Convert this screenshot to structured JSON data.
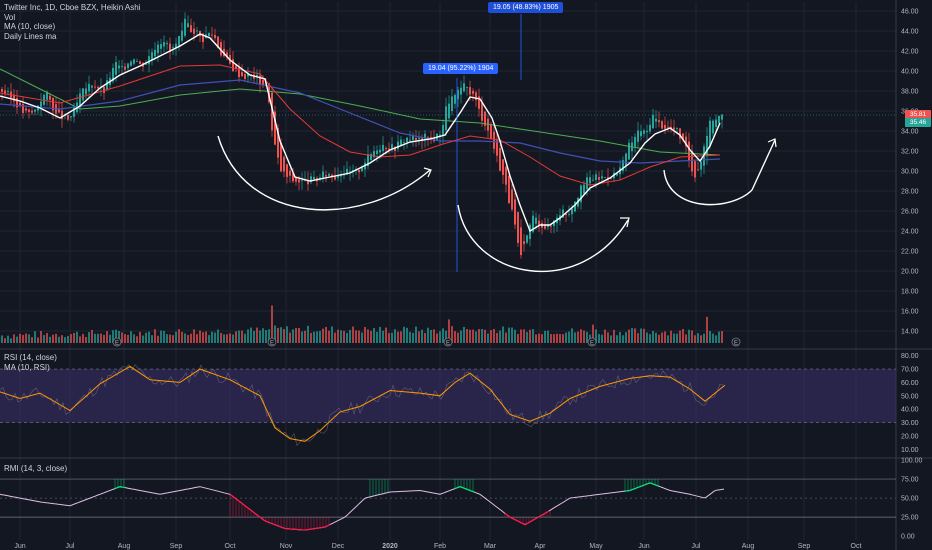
{
  "legend": {
    "symbol": "Twitter Inc, 1D, Cboe BZX, Heikin Ashi",
    "vol": "Vol",
    "ma": "MA (10, close)",
    "daily": "Daily Lines ma"
  },
  "callouts": {
    "first": "19.04 (95.22%) 1904",
    "second": "19.05 (48.83%) 1905"
  },
  "price_tags": {
    "top": "35.81",
    "bottom": "35.46",
    "top_color": "#ef5350",
    "bottom_color": "#26a69a"
  },
  "rsi_label_line1": "RSI (14, close)",
  "rsi_label_line2": "MA (10, RSI)",
  "rmi_label": "RMI (14, 3, close)",
  "earnings_marker": "E",
  "colors": {
    "up": "#26a69a",
    "down": "#ef5350",
    "ma10": "#ffffff",
    "ma50": "#e53935",
    "ma100": "#3f51b5",
    "ma200": "#4caf50",
    "rsi_line": "#ff9800",
    "rsi_band": "#3a2f6b",
    "rmi_line": "#e1bee7"
  },
  "chart_data": [
    {
      "type": "candlestick",
      "title": "Twitter Inc, 1D, Cboe BZX, Heikin Ashi",
      "y_ticks": [
        14.0,
        16.0,
        18.0,
        20.0,
        22.0,
        24.0,
        26.0,
        28.0,
        30.0,
        32.0,
        34.0,
        36.0,
        38.0,
        40.0,
        42.0,
        44.0,
        46.0
      ],
      "ylim": [
        12.6,
        46.9
      ],
      "x_ticks": [
        "Jun",
        "Jul",
        "Aug",
        "Sep",
        "Oct",
        "Nov",
        "Dec",
        "2020",
        "Feb",
        "Mar",
        "Apr",
        "May",
        "Jun",
        "Jul",
        "Aug",
        "Sep",
        "Oct"
      ],
      "close_path": [
        [
          0,
          38.2
        ],
        [
          8,
          37.6
        ],
        [
          16,
          36.9
        ],
        [
          22,
          36.0
        ],
        [
          28,
          35.7
        ],
        [
          34,
          35.9
        ],
        [
          40,
          37.1
        ],
        [
          46,
          37.8
        ],
        [
          52,
          36.7
        ],
        [
          56,
          35.6
        ],
        [
          62,
          35.4
        ],
        [
          68,
          35.1
        ],
        [
          74,
          36.0
        ],
        [
          80,
          37.5
        ],
        [
          86,
          38.3
        ],
        [
          92,
          38.8
        ],
        [
          98,
          38.4
        ],
        [
          104,
          38.0
        ],
        [
          110,
          39.5
        ],
        [
          116,
          40.7
        ],
        [
          122,
          40.1
        ],
        [
          128,
          40.9
        ],
        [
          134,
          41.5
        ],
        [
          140,
          40.6
        ],
        [
          146,
          40.9
        ],
        [
          152,
          42.0
        ],
        [
          158,
          42.9
        ],
        [
          164,
          43.2
        ],
        [
          170,
          41.9
        ],
        [
          176,
          42.6
        ],
        [
          182,
          43.7
        ],
        [
          186,
          45.2
        ],
        [
          190,
          44.2
        ],
        [
          196,
          44.0
        ],
        [
          202,
          43.1
        ],
        [
          208,
          43.8
        ],
        [
          214,
          43.6
        ],
        [
          220,
          42.0
        ],
        [
          226,
          41.2
        ],
        [
          232,
          40.4
        ],
        [
          238,
          39.8
        ],
        [
          244,
          39.5
        ],
        [
          250,
          39.6
        ],
        [
          256,
          39.4
        ],
        [
          262,
          38.8
        ],
        [
          268,
          38.3
        ],
        [
          272,
          34.0
        ],
        [
          276,
          32.0
        ],
        [
          280,
          30.2
        ],
        [
          286,
          29.5
        ],
        [
          292,
          29.1
        ],
        [
          298,
          29.0
        ],
        [
          304,
          28.9
        ],
        [
          310,
          29.1
        ],
        [
          316,
          29.1
        ],
        [
          322,
          29.5
        ],
        [
          328,
          29.8
        ],
        [
          334,
          29.4
        ],
        [
          340,
          30.0
        ],
        [
          346,
          29.9
        ],
        [
          352,
          29.8
        ],
        [
          358,
          30.0
        ],
        [
          364,
          30.9
        ],
        [
          370,
          31.6
        ],
        [
          376,
          32.3
        ],
        [
          382,
          32.6
        ],
        [
          388,
          32.5
        ],
        [
          394,
          32.3
        ],
        [
          400,
          32.9
        ],
        [
          406,
          33.3
        ],
        [
          412,
          33.3
        ],
        [
          418,
          33.0
        ],
        [
          424,
          33.4
        ],
        [
          430,
          33.2
        ],
        [
          436,
          33.3
        ],
        [
          442,
          34.3
        ],
        [
          446,
          36.2
        ],
        [
          450,
          37.3
        ],
        [
          456,
          37.4
        ],
        [
          462,
          38.5
        ],
        [
          468,
          38.2
        ],
        [
          474,
          37.5
        ],
        [
          480,
          35.8
        ],
        [
          486,
          34.6
        ],
        [
          492,
          33.0
        ],
        [
          498,
          31.0
        ],
        [
          504,
          29.3
        ],
        [
          510,
          26.7
        ],
        [
          516,
          24.0
        ],
        [
          520,
          21.0
        ],
        [
          526,
          23.0
        ],
        [
          532,
          25.5
        ],
        [
          538,
          25.0
        ],
        [
          544,
          24.5
        ],
        [
          550,
          24.3
        ],
        [
          556,
          25.5
        ],
        [
          562,
          26.1
        ],
        [
          568,
          25.7
        ],
        [
          574,
          27.0
        ],
        [
          580,
          28.0
        ],
        [
          586,
          29.0
        ],
        [
          592,
          29.4
        ],
        [
          598,
          29.3
        ],
        [
          604,
          29.4
        ],
        [
          610,
          29.6
        ],
        [
          616,
          29.7
        ],
        [
          622,
          30.4
        ],
        [
          628,
          32.4
        ],
        [
          634,
          33.2
        ],
        [
          640,
          34.2
        ],
        [
          646,
          33.6
        ],
        [
          652,
          35.7
        ],
        [
          658,
          34.8
        ],
        [
          664,
          34.5
        ],
        [
          670,
          34.3
        ],
        [
          676,
          34.1
        ],
        [
          682,
          33.2
        ],
        [
          688,
          31.5
        ],
        [
          694,
          29.5
        ],
        [
          700,
          30.7
        ],
        [
          706,
          33.5
        ],
        [
          712,
          35.3
        ],
        [
          718,
          35.4
        ],
        [
          724,
          35.6
        ]
      ],
      "ma10_path": [
        [
          0,
          37.5
        ],
        [
          20,
          37.0
        ],
        [
          40,
          36.3
        ],
        [
          60,
          35.3
        ],
        [
          80,
          36.5
        ],
        [
          100,
          38.3
        ],
        [
          120,
          39.6
        ],
        [
          140,
          40.5
        ],
        [
          160,
          41.5
        ],
        [
          180,
          42.5
        ],
        [
          200,
          43.7
        ],
        [
          210,
          43.3
        ],
        [
          230,
          41.1
        ],
        [
          250,
          39.6
        ],
        [
          265,
          39.2
        ],
        [
          280,
          33.0
        ],
        [
          295,
          29.4
        ],
        [
          310,
          29.0
        ],
        [
          330,
          29.4
        ],
        [
          350,
          29.8
        ],
        [
          370,
          30.8
        ],
        [
          390,
          32.1
        ],
        [
          410,
          32.9
        ],
        [
          430,
          33.2
        ],
        [
          445,
          33.6
        ],
        [
          460,
          35.8
        ],
        [
          470,
          37.4
        ],
        [
          480,
          37.2
        ],
        [
          492,
          35.3
        ],
        [
          500,
          33.0
        ],
        [
          510,
          29.5
        ],
        [
          520,
          26.6
        ],
        [
          530,
          24.0
        ],
        [
          540,
          24.6
        ],
        [
          550,
          24.6
        ],
        [
          560,
          25.3
        ],
        [
          575,
          26.6
        ],
        [
          590,
          28.3
        ],
        [
          610,
          29.3
        ],
        [
          630,
          30.8
        ],
        [
          645,
          32.8
        ],
        [
          655,
          33.7
        ],
        [
          670,
          34.3
        ],
        [
          680,
          33.6
        ],
        [
          690,
          32.1
        ],
        [
          700,
          31.0
        ],
        [
          710,
          32.5
        ],
        [
          720,
          34.8
        ]
      ],
      "ma50_path": [
        [
          0,
          37.8
        ],
        [
          60,
          36.8
        ],
        [
          120,
          38.5
        ],
        [
          180,
          40.5
        ],
        [
          220,
          40.6
        ],
        [
          260,
          39.7
        ],
        [
          290,
          36.2
        ],
        [
          320,
          33.5
        ],
        [
          350,
          31.9
        ],
        [
          380,
          31.4
        ],
        [
          410,
          31.6
        ],
        [
          440,
          32.6
        ],
        [
          470,
          33.5
        ],
        [
          500,
          33.1
        ],
        [
          530,
          31.4
        ],
        [
          560,
          29.5
        ],
        [
          590,
          28.6
        ],
        [
          620,
          29.1
        ],
        [
          650,
          30.4
        ],
        [
          680,
          31.4
        ],
        [
          720,
          31.6
        ]
      ],
      "ma100_path": [
        [
          0,
          36.7
        ],
        [
          60,
          36.2
        ],
        [
          120,
          37.0
        ],
        [
          180,
          38.6
        ],
        [
          240,
          39.1
        ],
        [
          300,
          37.8
        ],
        [
          350,
          35.8
        ],
        [
          400,
          33.8
        ],
        [
          440,
          33.0
        ],
        [
          480,
          33.0
        ],
        [
          520,
          32.8
        ],
        [
          560,
          31.8
        ],
        [
          600,
          31.0
        ],
        [
          640,
          30.8
        ],
        [
          680,
          31.0
        ],
        [
          720,
          31.2
        ]
      ],
      "ma200_path": [
        [
          0,
          40.2
        ],
        [
          40,
          38.2
        ],
        [
          80,
          36.2
        ],
        [
          120,
          36.5
        ],
        [
          180,
          37.6
        ],
        [
          240,
          38.2
        ],
        [
          300,
          37.7
        ],
        [
          360,
          36.5
        ],
        [
          420,
          35.2
        ],
        [
          480,
          34.8
        ],
        [
          540,
          33.9
        ],
        [
          600,
          33.0
        ],
        [
          660,
          31.9
        ],
        [
          720,
          31.6
        ]
      ],
      "volume_path": [
        [
          0,
          3
        ],
        [
          116,
          5
        ],
        [
          117,
          16
        ],
        [
          118,
          5
        ],
        [
          270,
          7
        ],
        [
          272,
          27
        ],
        [
          274,
          8
        ],
        [
          446,
          7
        ],
        [
          448,
          24
        ],
        [
          450,
          8
        ],
        [
          590,
          6
        ],
        [
          592,
          18
        ],
        [
          594,
          6
        ],
        [
          706,
          6
        ],
        [
          708,
          28
        ],
        [
          710,
          8
        ],
        [
          724,
          3
        ]
      ],
      "rsi_path": [
        [
          0,
          53
        ],
        [
          20,
          48
        ],
        [
          40,
          52
        ],
        [
          70,
          39
        ],
        [
          100,
          59
        ],
        [
          130,
          72
        ],
        [
          150,
          62
        ],
        [
          180,
          60
        ],
        [
          200,
          70
        ],
        [
          230,
          62
        ],
        [
          260,
          50
        ],
        [
          275,
          26
        ],
        [
          290,
          18
        ],
        [
          305,
          16
        ],
        [
          320,
          24
        ],
        [
          340,
          38
        ],
        [
          360,
          42
        ],
        [
          390,
          54
        ],
        [
          420,
          52
        ],
        [
          440,
          50
        ],
        [
          455,
          60
        ],
        [
          470,
          67
        ],
        [
          490,
          55
        ],
        [
          510,
          36
        ],
        [
          530,
          31
        ],
        [
          550,
          37
        ],
        [
          570,
          48
        ],
        [
          600,
          57
        ],
        [
          630,
          63
        ],
        [
          650,
          65
        ],
        [
          670,
          64
        ],
        [
          690,
          55
        ],
        [
          705,
          46
        ],
        [
          715,
          52
        ],
        [
          725,
          58
        ]
      ],
      "rmi_path": [
        [
          0,
          55
        ],
        [
          20,
          50
        ],
        [
          40,
          45
        ],
        [
          70,
          40
        ],
        [
          100,
          55
        ],
        [
          120,
          65
        ],
        [
          140,
          60
        ],
        [
          160,
          55
        ],
        [
          180,
          60
        ],
        [
          200,
          65
        ],
        [
          230,
          55
        ],
        [
          250,
          35
        ],
        [
          265,
          20
        ],
        [
          285,
          10
        ],
        [
          305,
          8
        ],
        [
          325,
          12
        ],
        [
          345,
          25
        ],
        [
          365,
          50
        ],
        [
          390,
          58
        ],
        [
          420,
          60
        ],
        [
          440,
          55
        ],
        [
          460,
          65
        ],
        [
          480,
          55
        ],
        [
          495,
          40
        ],
        [
          510,
          25
        ],
        [
          525,
          15
        ],
        [
          545,
          30
        ],
        [
          570,
          50
        ],
        [
          600,
          55
        ],
        [
          630,
          60
        ],
        [
          650,
          70
        ],
        [
          670,
          60
        ],
        [
          690,
          55
        ],
        [
          705,
          50
        ],
        [
          715,
          60
        ],
        [
          725,
          62
        ]
      ]
    },
    {
      "type": "line",
      "title": "RSI (14, close)",
      "y_ticks": [
        10.0,
        20.0,
        30.0,
        40.0,
        50.0,
        60.0,
        70.0,
        80.0
      ],
      "ylim": [
        5,
        82
      ],
      "bands": [
        30,
        70
      ]
    },
    {
      "type": "line",
      "title": "RMI (14, 3, close)",
      "y_ticks": [
        0.0,
        25.0,
        50.0,
        75.0,
        100.0
      ],
      "ylim": [
        -5,
        100
      ],
      "bands": [
        25,
        75
      ]
    }
  ]
}
